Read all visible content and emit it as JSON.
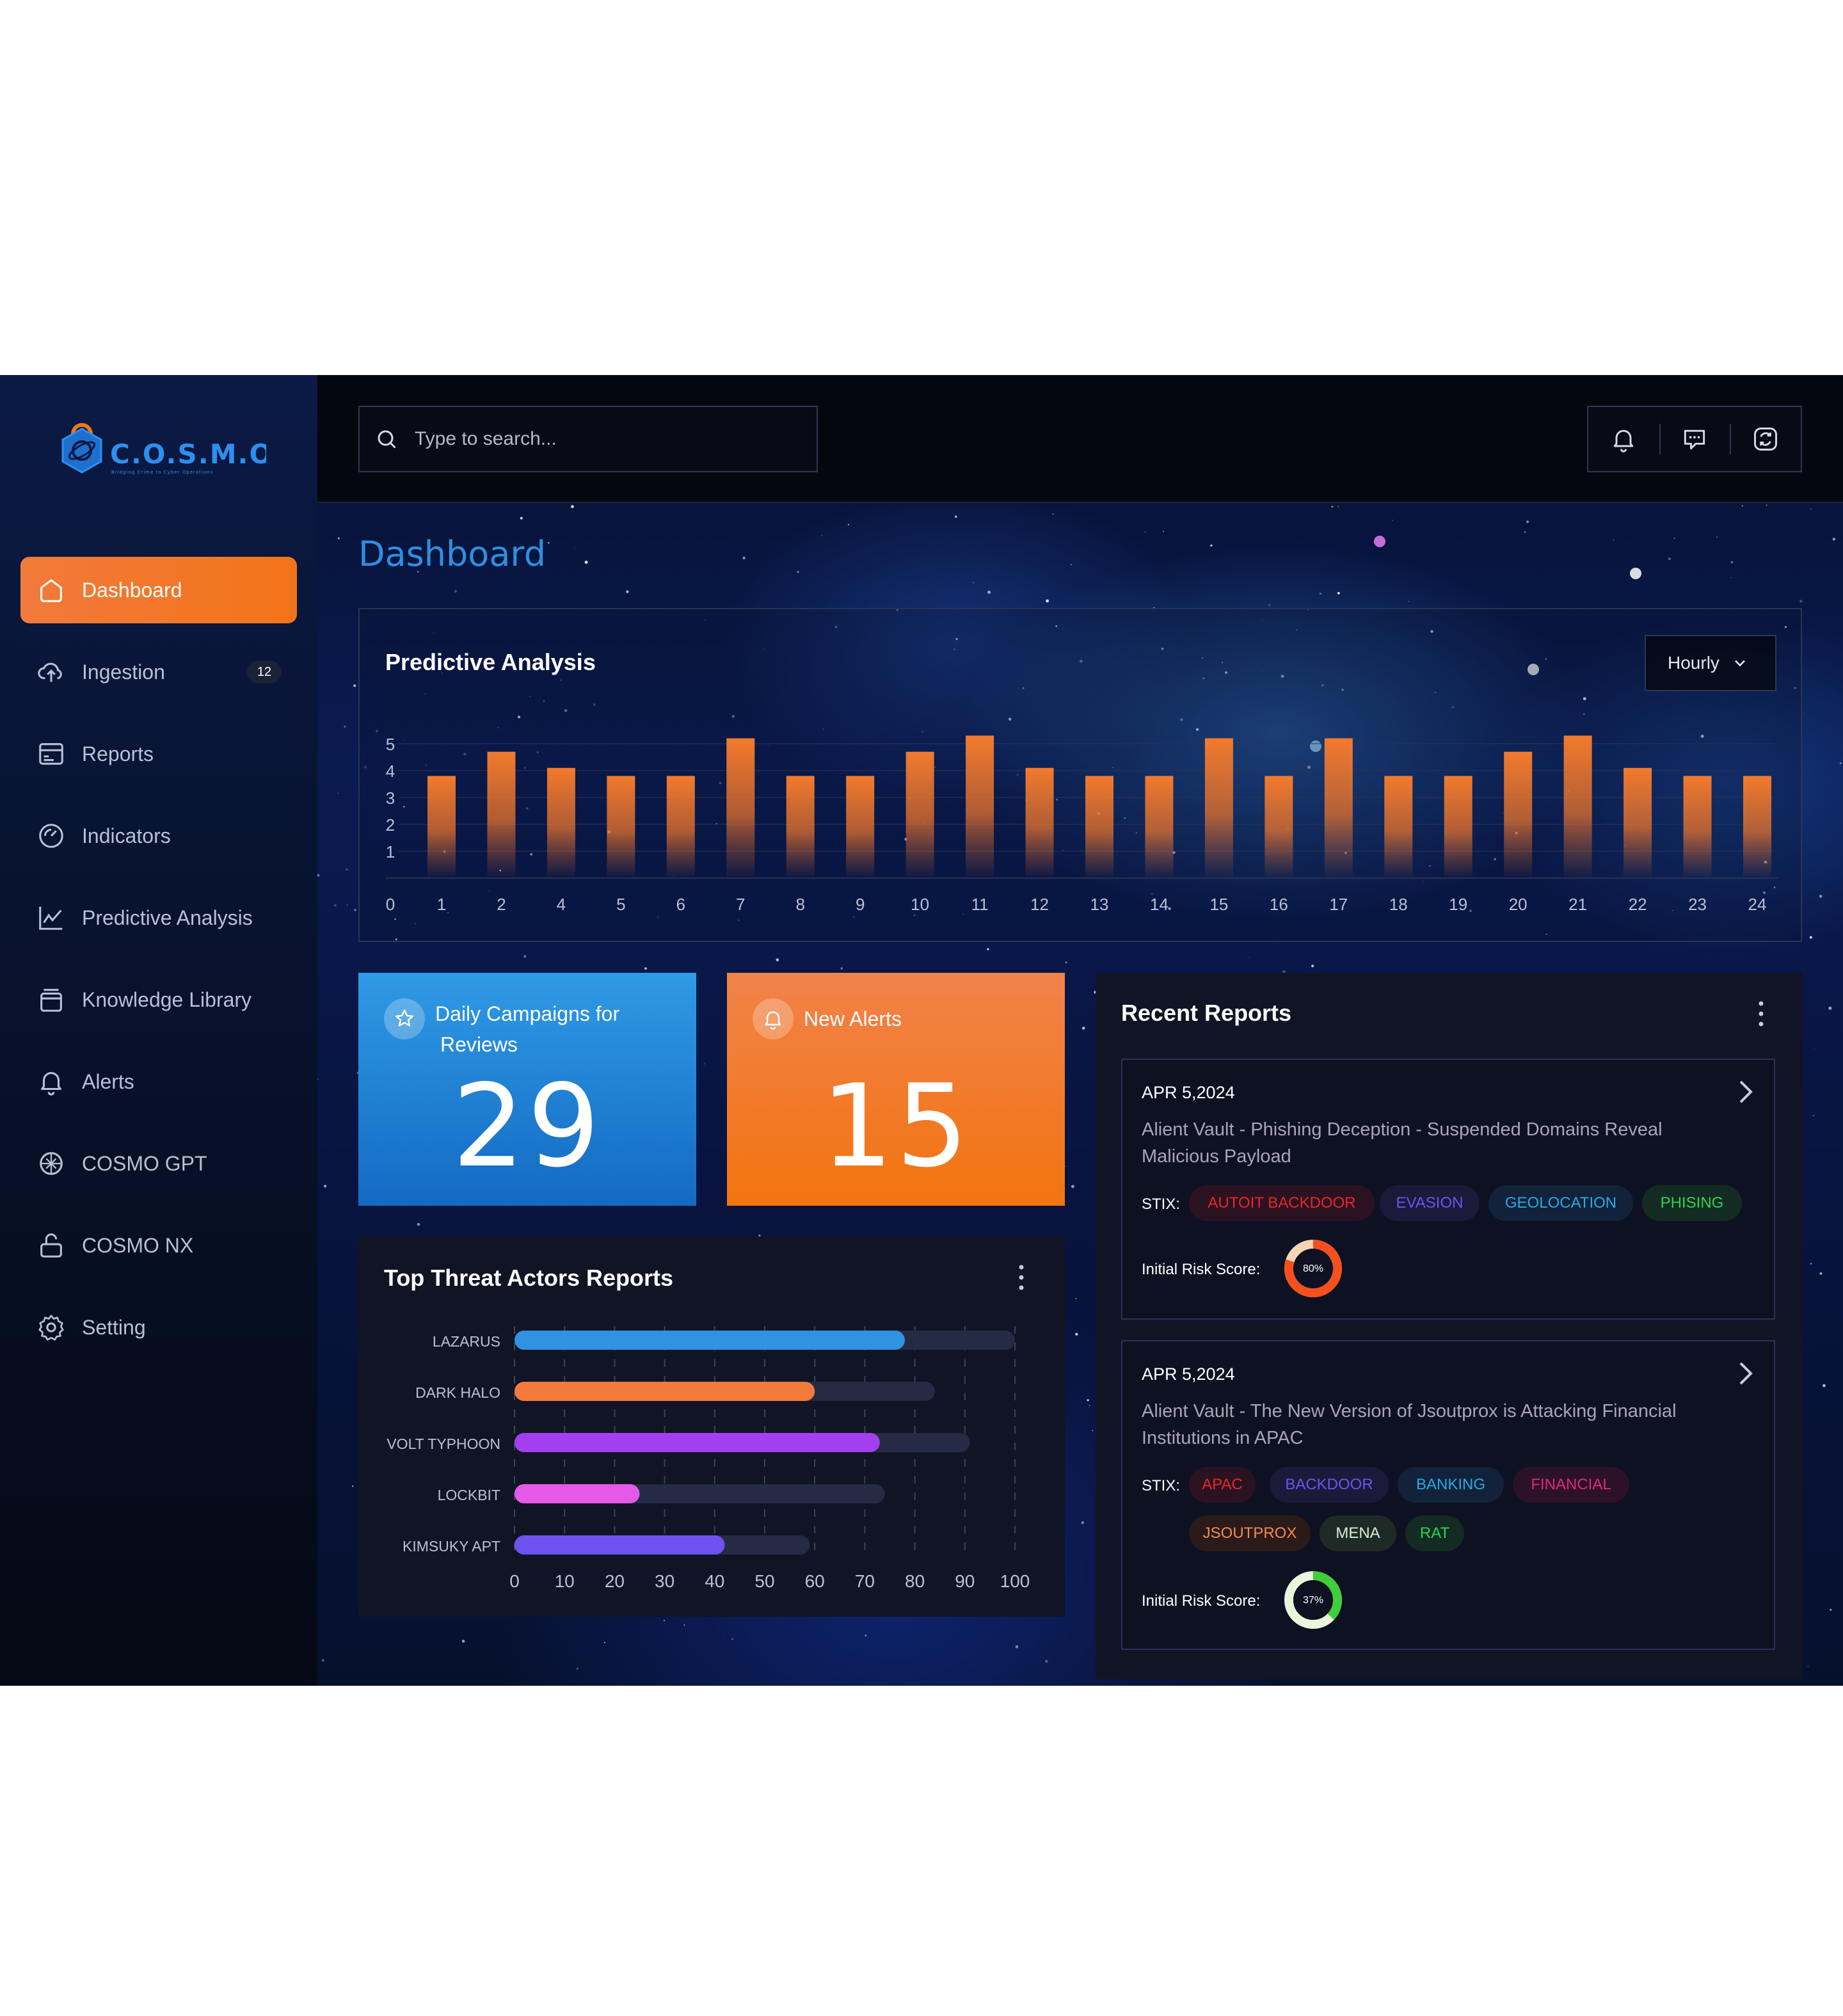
{
  "sidebar": {
    "logo_text": "C.O.S.M.O",
    "logo_tagline": "Bridging Crime to Cyber Operations",
    "items": [
      {
        "label": "Dashboard",
        "icon": "home-icon",
        "active": true
      },
      {
        "label": "Ingestion",
        "icon": "cloud-upload-icon",
        "badge": "12"
      },
      {
        "label": "Reports",
        "icon": "report-card-icon"
      },
      {
        "label": "Indicators",
        "icon": "gauge-icon"
      },
      {
        "label": "Predictive Analysis",
        "icon": "line-chart-icon"
      },
      {
        "label": "Knowledge Library",
        "icon": "library-icon"
      },
      {
        "label": "Alerts",
        "icon": "bell-icon"
      },
      {
        "label": "COSMO GPT",
        "icon": "ai-knot-icon"
      },
      {
        "label": "COSMO NX",
        "icon": "lock-icon"
      },
      {
        "label": "Setting",
        "icon": "gear-icon"
      }
    ]
  },
  "header": {
    "search_placeholder": "Type to search...",
    "tools": [
      "bell-icon",
      "chat-icon",
      "refresh-icon"
    ]
  },
  "page": {
    "title": "Dashboard"
  },
  "predictive": {
    "title": "Predictive Analysis",
    "period": "Hourly",
    "chart_data": {
      "type": "bar",
      "categories": [
        "1",
        "2",
        "4",
        "5",
        "6",
        "7",
        "8",
        "9",
        "10",
        "11",
        "12",
        "13",
        "14",
        "15",
        "16",
        "17",
        "18",
        "19",
        "20",
        "21",
        "22",
        "23",
        "24"
      ],
      "x_origin_label": "0",
      "values": [
        3.8,
        4.7,
        4.1,
        3.8,
        3.8,
        5.2,
        3.8,
        3.8,
        4.7,
        5.3,
        4.1,
        3.8,
        3.8,
        5.2,
        3.8,
        5.2,
        3.8,
        3.8,
        4.7,
        5.3,
        4.1,
        3.8,
        3.8
      ],
      "yticks": [
        "1",
        "2",
        "3",
        "4",
        "5"
      ],
      "ylim": [
        0,
        6
      ],
      "bar_color": "#f37a2c"
    }
  },
  "stats": {
    "campaigns": {
      "label_line1": "Daily Campaigns for",
      "label_line2": "Reviews",
      "value": "29"
    },
    "alerts": {
      "label": "New Alerts",
      "value": "15"
    }
  },
  "threat_actors": {
    "title": "Top Threat Actors Reports",
    "chart_data": {
      "type": "bar",
      "orientation": "horizontal",
      "categories": [
        "LAZARUS",
        "DARK HALO",
        "VOLT TYPHOON",
        "LOCKBIT",
        "KIMSUKY APT"
      ],
      "values": [
        78,
        60,
        73,
        25,
        42
      ],
      "track_max": [
        100,
        84,
        91,
        74,
        59
      ],
      "colors": [
        "#2f92e2",
        "#f27a3b",
        "#a43ff0",
        "#e45ae6",
        "#6d52ef"
      ],
      "xticks": [
        "0",
        "10",
        "20",
        "30",
        "40",
        "50",
        "60",
        "70",
        "80",
        "90",
        "100"
      ],
      "xlim": [
        0,
        100
      ]
    }
  },
  "recent_reports": {
    "title": "Recent Reports",
    "items": [
      {
        "date": "APR 5,2024",
        "title_line1": "Alient Vault - Phishing Deception - Suspended Domains Reveal",
        "title_line2": "Malicious Payload",
        "stix_label": "STIX:",
        "tags": [
          {
            "label": "AUTOIT BACKDOOR",
            "color": "#e8262d",
            "bg": "#2b1220"
          },
          {
            "label": "EVASION",
            "color": "#6b54f0",
            "bg": "#1b1a3a"
          },
          {
            "label": "GEOLOCATION",
            "color": "#28a9e4",
            "bg": "#12223a"
          },
          {
            "label": "PHISING",
            "color": "#2bd455",
            "bg": "#132b22"
          }
        ],
        "risk_label": "Initial Risk Score:",
        "risk_value": "80%",
        "risk_fraction": 0.8,
        "risk_color": "#f3501d",
        "risk_track": "#f8d4b4"
      },
      {
        "date": "APR 5,2024",
        "title_line1": "Alient Vault - The New Version of Jsoutprox is Attacking Financial",
        "title_line2": "Institutions in APAC",
        "stix_label": "STIX:",
        "tags": [
          {
            "label": "APAC",
            "color": "#e8262d",
            "bg": "#2b1220"
          },
          {
            "label": "BACKDOOR",
            "color": "#6b54f0",
            "bg": "#1b1a3a"
          },
          {
            "label": "BANKING",
            "color": "#28a9e4",
            "bg": "#12223a"
          },
          {
            "label": "FINANCIAL",
            "color": "#e0287a",
            "bg": "#2b1228"
          },
          {
            "label": "JSOUTPROX",
            "color": "#f48a52",
            "bg": "#2a1a1a"
          },
          {
            "label": "MENA",
            "color": "#d9efd9",
            "bg": "#1f2a27"
          },
          {
            "label": "RAT",
            "color": "#2bd455",
            "bg": "#132b22"
          }
        ],
        "risk_label": "Initial Risk Score:",
        "risk_value": "37%",
        "risk_fraction": 0.37,
        "risk_color": "#3fcf3b",
        "risk_track": "#e8f6dc"
      }
    ]
  }
}
